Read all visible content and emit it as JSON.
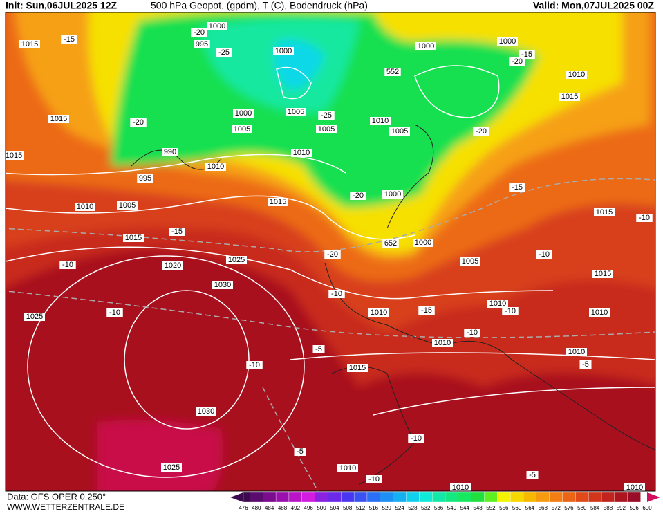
{
  "header": {
    "init": "Init: Sun,06JUL2025 12Z",
    "title": "500 hPa Geopot. (gpdm), T (C), Bodendruck (hPa)",
    "valid": "Valid: Mon,07JUL2025 00Z"
  },
  "footer": {
    "source": "Data: GFS OPER 0.250°",
    "site": "WWW.WETTERZENTRALE.DE"
  },
  "map": {
    "labels": [
      "1015",
      "-15",
      "1015",
      "-20",
      "990",
      "995",
      "1010",
      "1005",
      "1015",
      "-15",
      "-10",
      "1020",
      "1025",
      "1030",
      "1025",
      "-10",
      "1030",
      "1025",
      "1015",
      "1010",
      "1005",
      "1000",
      "1000",
      "995",
      "1000",
      "-20",
      "-25",
      "-25",
      "1005",
      "1005",
      "1010",
      "1010",
      "1005",
      "552",
      "1000",
      "1000",
      "-15",
      "-20",
      "1010",
      "1015",
      "-20",
      "-15",
      "-20",
      "1000",
      "652",
      "1000",
      "-20",
      "1005",
      "-10",
      "1010",
      "1010",
      "-15",
      "-10",
      "1010",
      "-10",
      "1015",
      "-10",
      "-10",
      "1015",
      "1010",
      "1010",
      "-5",
      "-5",
      "-10",
      "1015",
      "-10",
      "-5",
      "1010",
      "-10",
      "1010",
      "-5",
      "1010",
      "1015"
    ]
  },
  "colorbar": {
    "labels": [
      476,
      480,
      484,
      488,
      492,
      496,
      500,
      504,
      508,
      512,
      516,
      520,
      524,
      528,
      532,
      536,
      540,
      544,
      548,
      552,
      556,
      560,
      564,
      568,
      572,
      576,
      580,
      584,
      588,
      592,
      596,
      600
    ],
    "colors": [
      "#3c0a4e",
      "#5a0b6e",
      "#7a0c8e",
      "#9a10ae",
      "#b814c8",
      "#d21ce0",
      "#8a22e0",
      "#6a2ae8",
      "#4a36f0",
      "#3a52f2",
      "#2a70f4",
      "#1e90f4",
      "#16b0f2",
      "#10d0ee",
      "#10e8d8",
      "#14e8a8",
      "#16e880",
      "#18e860",
      "#20e040",
      "#60f020",
      "#f4f400",
      "#f4d800",
      "#f6b800",
      "#f69a10",
      "#f27e14",
      "#ec6416",
      "#e04a18",
      "#d2361a",
      "#c0241c",
      "#ac141e",
      "#980c28",
      "#d01060"
    ]
  }
}
